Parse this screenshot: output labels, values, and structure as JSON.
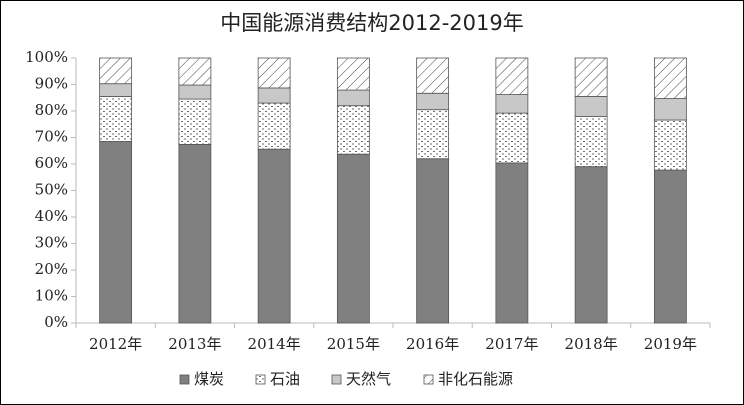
{
  "chart_data": {
    "type": "stacked_bar",
    "title": "中国能源消费结构2012-2019年",
    "categories": [
      "2012年",
      "2013年",
      "2014年",
      "2015年",
      "2016年",
      "2017年",
      "2018年",
      "2019年"
    ],
    "series": [
      {
        "name": "煤炭",
        "color": "#808080",
        "pattern": "none",
        "values": [
          68.5,
          67.4,
          65.6,
          63.7,
          62.0,
          60.4,
          59.0,
          57.7
        ]
      },
      {
        "name": "石油",
        "color": "#ffffff",
        "pattern": "dots",
        "values": [
          17.0,
          17.1,
          17.4,
          18.3,
          18.5,
          18.8,
          18.9,
          18.9
        ]
      },
      {
        "name": "天然气",
        "color": "#c8c8c8",
        "pattern": "none",
        "values": [
          4.8,
          5.3,
          5.7,
          5.9,
          6.2,
          7.0,
          7.6,
          8.1
        ]
      },
      {
        "name": "非化石能源",
        "color": "#ffffff",
        "pattern": "hatch",
        "values": [
          9.7,
          10.2,
          11.3,
          12.1,
          13.3,
          13.8,
          14.5,
          15.3
        ]
      }
    ],
    "ylim": [
      0,
      100
    ],
    "yticks": [
      {
        "value": 0,
        "label": "0%"
      },
      {
        "value": 10,
        "label": "10%"
      },
      {
        "value": 20,
        "label": "20%"
      },
      {
        "value": 30,
        "label": "30%"
      },
      {
        "value": 40,
        "label": "40%"
      },
      {
        "value": 50,
        "label": "50%"
      },
      {
        "value": 60,
        "label": "60%"
      },
      {
        "value": 70,
        "label": "70%"
      },
      {
        "value": 80,
        "label": "80%"
      },
      {
        "value": 90,
        "label": "90%"
      },
      {
        "value": 100,
        "label": "100%"
      }
    ],
    "legend": "bottom"
  }
}
